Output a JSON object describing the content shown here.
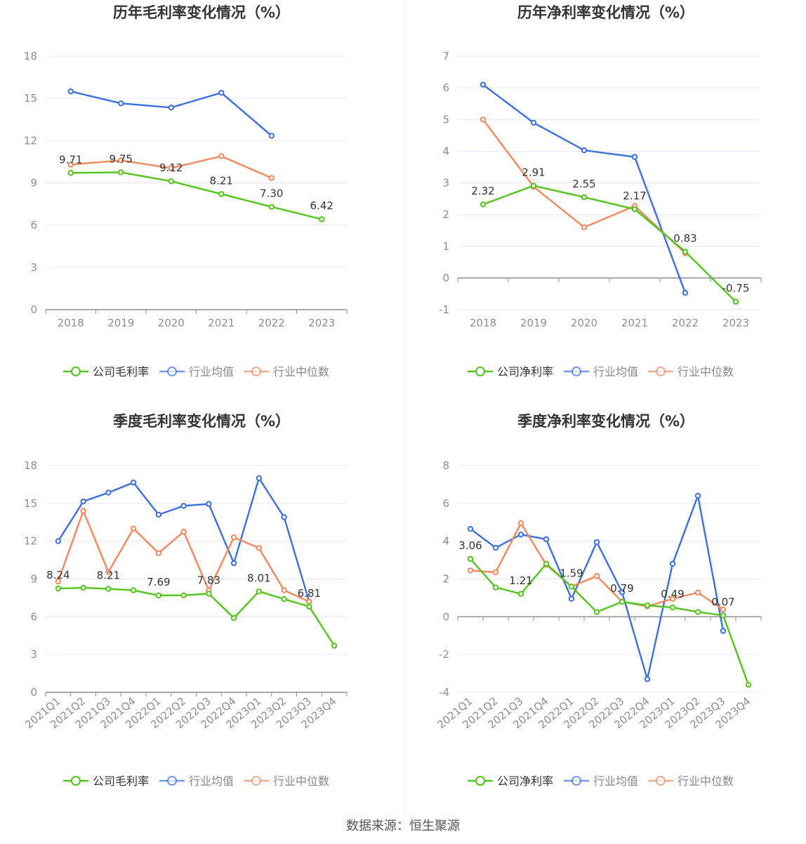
{
  "source": "数据来源：恒生聚源",
  "colors": {
    "company": "#52c41a",
    "avg": "#3a6fe0",
    "median": "#f4875b",
    "grid": "#e6e9f2",
    "axis": "#8e8e8e",
    "tick": "#8e8e8e",
    "label": "#333333"
  },
  "chart_data": [
    {
      "type": "line",
      "title": "历年毛利率变化情况（%）",
      "categories": [
        "2018",
        "2019",
        "2020",
        "2021",
        "2022",
        "2023"
      ],
      "ylim": [
        0,
        18
      ],
      "yticks": [
        0,
        3,
        6,
        9,
        12,
        15,
        18
      ],
      "series": [
        {
          "name": "公司毛利率",
          "role": "company",
          "values": [
            9.71,
            9.75,
            9.12,
            8.21,
            7.3,
            6.42
          ]
        },
        {
          "name": "行业均值",
          "role": "avg",
          "values": [
            15.5,
            14.65,
            14.35,
            15.4,
            12.35,
            null
          ]
        },
        {
          "name": "行业中位数",
          "role": "median",
          "values": [
            10.3,
            10.6,
            10.05,
            10.9,
            9.35,
            null
          ]
        }
      ],
      "data_labels": [
        {
          "index": 0,
          "text": "9.71"
        },
        {
          "index": 1,
          "text": "9.75"
        },
        {
          "index": 2,
          "text": "9.12"
        },
        {
          "index": 3,
          "text": "8.21"
        },
        {
          "index": 4,
          "text": "7.30"
        },
        {
          "index": 5,
          "text": "6.42"
        }
      ],
      "legend": "bottom"
    },
    {
      "type": "line",
      "title": "历年净利率变化情况（%）",
      "categories": [
        "2018",
        "2019",
        "2020",
        "2021",
        "2022",
        "2023"
      ],
      "ylim": [
        -1,
        7
      ],
      "yticks": [
        -1,
        0,
        1,
        2,
        3,
        4,
        5,
        6,
        7
      ],
      "series": [
        {
          "name": "公司净利率",
          "role": "company",
          "values": [
            2.32,
            2.91,
            2.55,
            2.17,
            0.83,
            -0.75
          ]
        },
        {
          "name": "行业均值",
          "role": "avg",
          "values": [
            6.1,
            4.9,
            4.03,
            3.82,
            -0.47,
            null
          ]
        },
        {
          "name": "行业中位数",
          "role": "median",
          "values": [
            5.0,
            2.88,
            1.6,
            2.27,
            0.78,
            null
          ]
        }
      ],
      "data_labels": [
        {
          "index": 0,
          "text": "2.32"
        },
        {
          "index": 1,
          "text": "2.91"
        },
        {
          "index": 2,
          "text": "2.55"
        },
        {
          "index": 3,
          "text": "2.17"
        },
        {
          "index": 4,
          "text": "0.83"
        },
        {
          "index": 5,
          "text": "-0.75"
        }
      ],
      "legend": "bottom"
    },
    {
      "type": "line",
      "title": "季度毛利率变化情况（%）",
      "categories": [
        "2021Q1",
        "2021Q2",
        "2021Q3",
        "2021Q4",
        "2022Q1",
        "2022Q2",
        "2022Q3",
        "2022Q4",
        "2023Q1",
        "2023Q2",
        "2023Q3",
        "2023Q4"
      ],
      "ylim": [
        0,
        18
      ],
      "yticks": [
        0,
        3,
        6,
        9,
        12,
        15,
        18
      ],
      "series": [
        {
          "name": "公司毛利率",
          "role": "company",
          "values": [
            8.24,
            8.3,
            8.21,
            8.1,
            7.69,
            7.7,
            7.83,
            5.9,
            8.01,
            7.4,
            6.81,
            3.7
          ]
        },
        {
          "name": "行业均值",
          "role": "avg",
          "values": [
            12.0,
            15.15,
            15.85,
            16.65,
            14.1,
            14.8,
            14.95,
            10.25,
            17.0,
            13.9,
            7.2,
            null
          ]
        },
        {
          "name": "行业中位数",
          "role": "median",
          "values": [
            8.8,
            14.4,
            9.55,
            13.0,
            11.05,
            12.75,
            8.1,
            12.3,
            11.45,
            8.1,
            7.2,
            null
          ]
        }
      ],
      "data_labels": [
        {
          "index": 0,
          "text": "8.24"
        },
        {
          "index": 2,
          "text": "8.21"
        },
        {
          "index": 4,
          "text": "7.69"
        },
        {
          "index": 6,
          "text": "7.83"
        },
        {
          "index": 8,
          "text": "8.01"
        },
        {
          "index": 10,
          "text": "6.81"
        }
      ],
      "legend": "bottom"
    },
    {
      "type": "line",
      "title": "季度净利率变化情况（%）",
      "categories": [
        "2021Q1",
        "2021Q2",
        "2021Q3",
        "2021Q4",
        "2022Q1",
        "2022Q2",
        "2022Q3",
        "2022Q4",
        "2023Q1",
        "2023Q2",
        "2023Q3",
        "2023Q4"
      ],
      "ylim": [
        -4,
        8
      ],
      "yticks": [
        -4,
        -2,
        0,
        2,
        4,
        6,
        8
      ],
      "series": [
        {
          "name": "公司净利率",
          "role": "company",
          "values": [
            3.06,
            1.55,
            1.21,
            2.8,
            1.59,
            0.25,
            0.79,
            0.6,
            0.49,
            0.25,
            0.07,
            -3.6
          ]
        },
        {
          "name": "行业均值",
          "role": "avg",
          "values": [
            4.65,
            3.65,
            4.35,
            4.1,
            0.95,
            3.95,
            1.3,
            -3.3,
            2.8,
            6.4,
            -0.75,
            null
          ]
        },
        {
          "name": "行业中位数",
          "role": "median",
          "values": [
            2.45,
            2.35,
            4.95,
            2.75,
            1.6,
            2.15,
            0.8,
            0.55,
            0.95,
            1.28,
            0.38,
            null
          ]
        }
      ],
      "data_labels": [
        {
          "index": 0,
          "text": "3.06"
        },
        {
          "index": 2,
          "text": "1.21"
        },
        {
          "index": 4,
          "text": "1.59"
        },
        {
          "index": 6,
          "text": "0.79"
        },
        {
          "index": 8,
          "text": "0.49"
        },
        {
          "index": 10,
          "text": "0.07"
        }
      ],
      "legend": "bottom"
    }
  ]
}
